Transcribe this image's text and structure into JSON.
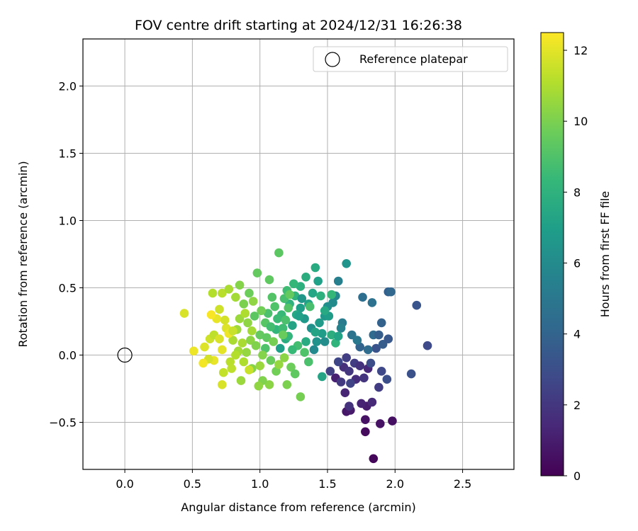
{
  "chart_data": {
    "type": "scatter",
    "title": "FOV centre drift starting at 2024/12/31 16:26:38",
    "xlabel": "Angular distance from reference (arcmin)",
    "ylabel": "Rotation from reference (arcmin)",
    "xlim": [
      -0.31,
      2.88
    ],
    "ylim": [
      -0.85,
      2.35
    ],
    "xticks": [
      0.0,
      0.5,
      1.0,
      1.5,
      2.0,
      2.5
    ],
    "xtick_labels": [
      "0.0",
      "0.5",
      "1.0",
      "1.5",
      "2.0",
      "2.5"
    ],
    "yticks": [
      -0.5,
      0.0,
      0.5,
      1.0,
      1.5,
      2.0
    ],
    "ytick_labels": [
      "−0.5",
      "0.0",
      "0.5",
      "1.0",
      "1.5",
      "2.0"
    ],
    "grid": true,
    "legend": {
      "placement": "top-right",
      "label": "Reference platepar"
    },
    "reference_point": {
      "x": 0.0,
      "y": 0.0
    },
    "colorbar": {
      "label": "Hours from first FF file",
      "colormap": "viridis",
      "range": [
        0,
        12.5
      ],
      "ticks": [
        0,
        2,
        4,
        6,
        8,
        10,
        12
      ],
      "tick_labels": [
        "0",
        "2",
        "4",
        "6",
        "8",
        "10",
        "12"
      ]
    },
    "points": [
      [
        1.84,
        -0.77,
        0.2
      ],
      [
        1.78,
        -0.57,
        0.4
      ],
      [
        1.89,
        -0.51,
        0.6
      ],
      [
        1.98,
        -0.49,
        0.5
      ],
      [
        1.64,
        -0.42,
        0.8
      ],
      [
        1.78,
        -0.48,
        0.6
      ],
      [
        1.79,
        -0.38,
        1.0
      ],
      [
        1.67,
        -0.41,
        0.9
      ],
      [
        1.75,
        -0.36,
        1.2
      ],
      [
        1.83,
        -0.35,
        1.5
      ],
      [
        1.66,
        -0.38,
        1.8
      ],
      [
        1.63,
        -0.28,
        1.3
      ],
      [
        1.71,
        -0.18,
        1.6
      ],
      [
        1.77,
        -0.17,
        1.9
      ],
      [
        1.8,
        -0.1,
        1.4
      ],
      [
        1.56,
        -0.17,
        1.1
      ],
      [
        1.62,
        -0.09,
        1.7
      ],
      [
        1.66,
        -0.12,
        2.0
      ],
      [
        1.7,
        -0.06,
        2.2
      ],
      [
        1.74,
        -0.08,
        1.8
      ],
      [
        1.52,
        -0.12,
        2.4
      ],
      [
        1.58,
        -0.05,
        2.6
      ],
      [
        1.64,
        -0.02,
        2.3
      ],
      [
        1.6,
        -0.2,
        2.1
      ],
      [
        1.67,
        -0.21,
        2.5
      ],
      [
        1.88,
        -0.24,
        2.2
      ],
      [
        1.9,
        -0.12,
        2.7
      ],
      [
        1.94,
        -0.18,
        3.0
      ],
      [
        1.82,
        -0.06,
        2.9
      ],
      [
        1.86,
        0.05,
        3.2
      ],
      [
        1.91,
        0.08,
        3.6
      ],
      [
        1.95,
        0.12,
        3.4
      ],
      [
        2.12,
        -0.14,
        3.1
      ],
      [
        2.24,
        0.07,
        2.8
      ],
      [
        2.16,
        0.37,
        3.3
      ],
      [
        1.95,
        0.47,
        3.8
      ],
      [
        1.97,
        0.47,
        4.1
      ],
      [
        1.9,
        0.24,
        3.9
      ],
      [
        1.84,
        0.15,
        4.3
      ],
      [
        1.88,
        0.15,
        3.7
      ],
      [
        1.76,
        0.43,
        4.5
      ],
      [
        1.83,
        0.39,
        4.7
      ],
      [
        1.74,
        0.06,
        4.0
      ],
      [
        1.8,
        0.04,
        4.4
      ],
      [
        1.68,
        0.15,
        4.8
      ],
      [
        1.72,
        0.11,
        5.0
      ],
      [
        1.61,
        0.24,
        5.2
      ],
      [
        1.6,
        0.2,
        5.6
      ],
      [
        1.58,
        0.55,
        5.4
      ],
      [
        1.56,
        0.44,
        5.8
      ],
      [
        1.64,
        0.68,
        6.5
      ],
      [
        1.54,
        0.39,
        6.0
      ],
      [
        1.5,
        0.36,
        6.2
      ],
      [
        1.48,
        0.29,
        6.6
      ],
      [
        1.44,
        0.24,
        6.8
      ],
      [
        1.46,
        0.16,
        6.9
      ],
      [
        1.42,
        0.1,
        6.4
      ],
      [
        1.4,
        0.04,
        5.9
      ],
      [
        1.38,
        0.2,
        6.3
      ],
      [
        1.33,
        0.27,
        6.7
      ],
      [
        1.3,
        0.35,
        7.0
      ],
      [
        1.36,
        0.38,
        7.2
      ],
      [
        1.39,
        0.46,
        7.4
      ],
      [
        1.43,
        0.55,
        7.1
      ],
      [
        1.41,
        0.65,
        7.6
      ],
      [
        1.34,
        0.58,
        7.8
      ],
      [
        1.3,
        0.51,
        7.9
      ],
      [
        1.26,
        0.44,
        8.1
      ],
      [
        1.22,
        0.38,
        8.0
      ],
      [
        1.27,
        0.3,
        7.5
      ],
      [
        1.24,
        0.22,
        7.3
      ],
      [
        1.19,
        0.12,
        7.7
      ],
      [
        1.15,
        0.05,
        7.0
      ],
      [
        1.12,
        0.19,
        8.2
      ],
      [
        1.16,
        0.3,
        8.4
      ],
      [
        1.2,
        0.48,
        8.6
      ],
      [
        1.25,
        0.53,
        8.3
      ],
      [
        1.18,
        0.42,
        8.8
      ],
      [
        1.11,
        0.36,
        9.0
      ],
      [
        1.14,
        0.76,
        9.3
      ],
      [
        1.07,
        0.56,
        9.4
      ],
      [
        1.09,
        0.43,
        9.1
      ],
      [
        1.06,
        0.31,
        8.9
      ],
      [
        1.04,
        0.24,
        9.2
      ],
      [
        1.0,
        0.15,
        9.5
      ],
      [
        1.04,
        0.05,
        9.0
      ],
      [
        1.08,
        -0.04,
        9.6
      ],
      [
        1.12,
        -0.12,
        9.8
      ],
      [
        1.23,
        -0.09,
        9.7
      ],
      [
        1.3,
        -0.31,
        9.9
      ],
      [
        1.2,
        -0.22,
        10.0
      ],
      [
        1.07,
        -0.22,
        10.3
      ],
      [
        1.02,
        -0.19,
        10.1
      ],
      [
        0.99,
        -0.23,
        10.4
      ],
      [
        0.94,
        -0.1,
        10.2
      ],
      [
        0.9,
        0.02,
        10.5
      ],
      [
        0.93,
        0.11,
        10.3
      ],
      [
        0.96,
        0.29,
        9.3
      ],
      [
        0.98,
        0.61,
        9.5
      ],
      [
        0.92,
        0.46,
        9.7
      ],
      [
        0.88,
        0.38,
        10.0
      ],
      [
        0.85,
        0.27,
        10.6
      ],
      [
        0.83,
        0.19,
        10.7
      ],
      [
        0.8,
        0.11,
        10.9
      ],
      [
        0.84,
        0.03,
        10.8
      ],
      [
        0.88,
        -0.05,
        11.0
      ],
      [
        0.92,
        -0.11,
        11.5
      ],
      [
        0.86,
        -0.19,
        10.6
      ],
      [
        0.78,
        -0.05,
        11.2
      ],
      [
        0.73,
        -0.13,
        11.4
      ],
      [
        0.72,
        -0.22,
        11.8
      ],
      [
        0.66,
        -0.04,
        12.1
      ],
      [
        0.62,
        -0.03,
        11.7
      ],
      [
        0.58,
        -0.06,
        12.3
      ],
      [
        0.51,
        0.03,
        12.2
      ],
      [
        0.59,
        0.06,
        11.9
      ],
      [
        0.63,
        0.12,
        11.6
      ],
      [
        0.66,
        0.15,
        11.3
      ],
      [
        0.7,
        0.12,
        11.8
      ],
      [
        0.72,
        0.04,
        12.0
      ],
      [
        0.75,
        0.2,
        11.9
      ],
      [
        0.77,
        0.16,
        12.2
      ],
      [
        0.8,
        0.18,
        11.5
      ],
      [
        0.74,
        0.26,
        11.7
      ],
      [
        0.68,
        0.27,
        12.1
      ],
      [
        0.64,
        0.3,
        12.4
      ],
      [
        0.7,
        0.34,
        11.6
      ],
      [
        0.72,
        0.46,
        11.2
      ],
      [
        0.65,
        0.46,
        11.1
      ],
      [
        0.77,
        0.49,
        10.9
      ],
      [
        0.85,
        0.52,
        10.2
      ],
      [
        0.82,
        0.43,
        10.8
      ],
      [
        0.44,
        0.31,
        11.8
      ],
      [
        0.95,
        0.4,
        10.4
      ],
      [
        1.01,
        0.33,
        9.8
      ],
      [
        1.05,
        0.13,
        9.4
      ],
      [
        1.08,
        0.21,
        8.7
      ],
      [
        1.13,
        0.27,
        8.5
      ],
      [
        1.17,
        0.2,
        8.6
      ],
      [
        1.21,
        0.14,
        8.2
      ],
      [
        1.28,
        0.07,
        8.7
      ],
      [
        1.33,
        0.02,
        9.0
      ],
      [
        1.36,
        -0.05,
        8.9
      ],
      [
        1.26,
        -0.14,
        9.4
      ],
      [
        1.46,
        -0.16,
        7.3
      ],
      [
        1.48,
        0.1,
        6.1
      ],
      [
        1.53,
        0.15,
        7.8
      ],
      [
        1.56,
        0.09,
        8.1
      ],
      [
        1.58,
        0.14,
        7.2
      ],
      [
        1.51,
        0.29,
        6.9
      ],
      [
        1.53,
        0.45,
        8.3
      ],
      [
        1.48,
        0.33,
        7.5
      ],
      [
        1.45,
        0.44,
        7.9
      ],
      [
        1.37,
        0.36,
        8.8
      ],
      [
        1.31,
        0.42,
        6.6
      ],
      [
        1.29,
        0.29,
        7.1
      ],
      [
        1.21,
        0.35,
        9.1
      ],
      [
        1.19,
        0.26,
        8.9
      ],
      [
        1.17,
        0.15,
        9.6
      ],
      [
        1.1,
        0.1,
        9.9
      ],
      [
        1.02,
        0.0,
        10.2
      ],
      [
        1.0,
        -0.08,
        10.6
      ],
      [
        0.97,
        0.07,
        10.1
      ],
      [
        0.94,
        0.18,
        10.8
      ],
      [
        0.91,
        0.24,
        10.4
      ],
      [
        0.89,
        0.31,
        11.0
      ],
      [
        0.87,
        0.09,
        10.9
      ],
      [
        0.82,
        0.0,
        11.1
      ],
      [
        0.79,
        -0.1,
        11.3
      ],
      [
        1.14,
        -0.07,
        10.5
      ],
      [
        1.18,
        -0.02,
        10.3
      ],
      [
        1.24,
        0.04,
        8.4
      ],
      [
        1.34,
        0.1,
        7.6
      ],
      [
        1.41,
        0.17,
        7.3
      ],
      [
        1.22,
        0.45,
        9.5
      ]
    ]
  }
}
